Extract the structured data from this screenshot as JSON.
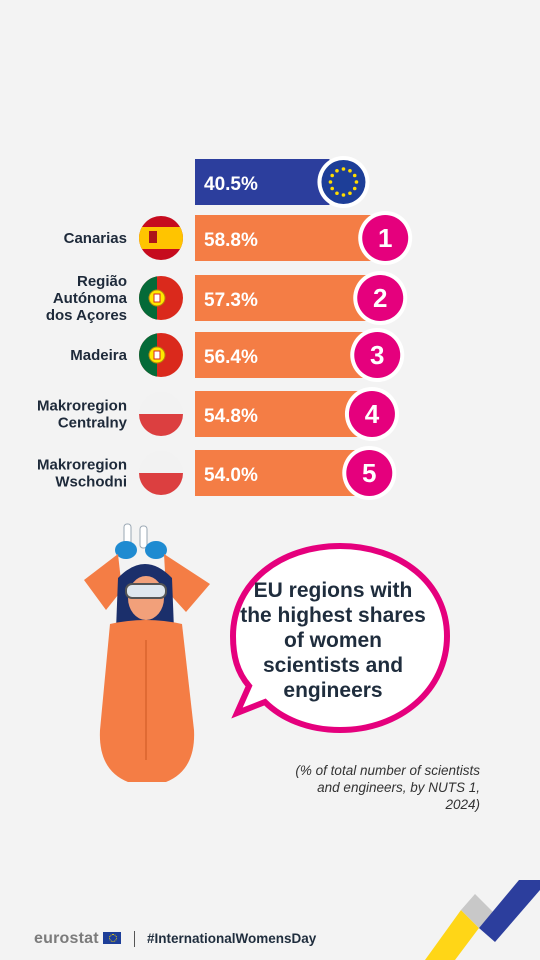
{
  "chart_data": {
    "type": "bar",
    "title": "EU regions with the highest shares of women scientists and engineers",
    "note": "(% of total number of scientists and engineers, by NUTS 1, 2024)",
    "eu": {
      "value": 40.5,
      "label": "40.5%"
    },
    "categories": [
      "Canarias",
      "Região Autónoma dos Açores",
      "Madeira",
      "Makroregion Centralny",
      "Makroregion Wschodni"
    ],
    "label_lines": [
      [
        "Canarias"
      ],
      [
        "Região",
        "Autónoma",
        "dos Açores"
      ],
      [
        "Madeira"
      ],
      [
        "Makroregion",
        "Centralny"
      ],
      [
        "Makroregion",
        "Wschodni"
      ]
    ],
    "values": [
      58.8,
      57.3,
      56.4,
      54.8,
      54.0
    ],
    "value_labels": [
      "58.8%",
      "57.3%",
      "56.4%",
      "54.8%",
      "54.0%"
    ],
    "ranks": [
      "1",
      "2",
      "3",
      "4",
      "5"
    ],
    "flags": [
      "spain",
      "portugal",
      "portugal",
      "poland",
      "poland"
    ],
    "colors": {
      "eu_bar": "#2c3e9d",
      "bar": "#f47d45",
      "rank_circle": "#e5007d"
    }
  },
  "bubble": {
    "lines": [
      "EU regions with",
      "the highest shares",
      "of women",
      "scientists and",
      "engineers"
    ]
  },
  "footer": {
    "brand": "eurostat",
    "hashtag": "#InternationalWomensDay"
  }
}
